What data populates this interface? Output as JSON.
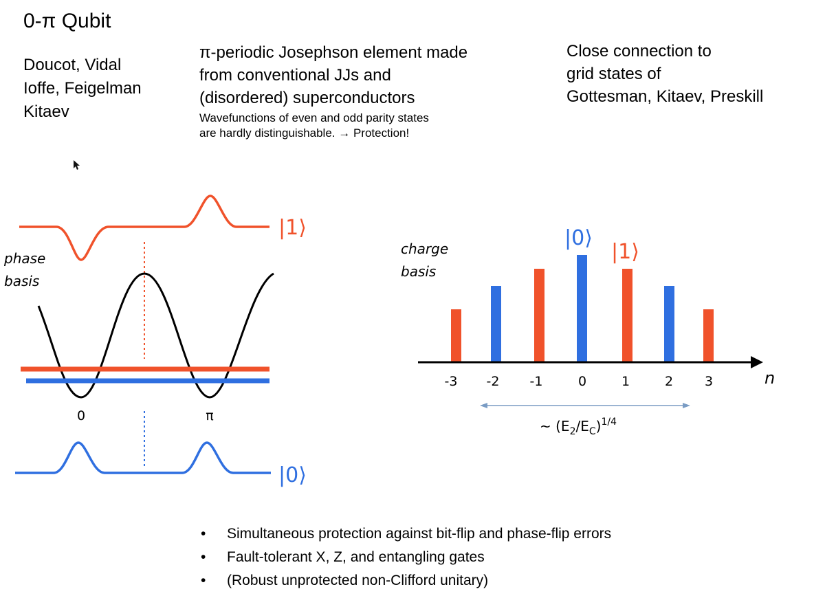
{
  "title": "0-π Qubit",
  "authors": [
    "Doucot, Vidal",
    "Ioffe, Feigelman",
    "Kitaev"
  ],
  "description": {
    "lines": [
      "π-periodic Josephson element made",
      "from conventional JJs and",
      "(disordered) superconductors"
    ],
    "small_lines": [
      "Wavefunctions of even and odd parity states",
      "are hardly distinguishable. → Protection!"
    ]
  },
  "connection": [
    "Close connection to",
    "grid states of",
    "Gottesman, Kitaev, Preskill"
  ],
  "phase_diagram": {
    "label_lines": [
      "phase",
      "basis"
    ],
    "ket_one": "|1⟩",
    "ket_zero": "|0⟩",
    "ticks": [
      "0",
      "π"
    ]
  },
  "charge_diagram": {
    "label_lines": [
      "charge",
      "basis"
    ],
    "ket_zero": "|0⟩",
    "ket_one": "|1⟩",
    "axis_label": "n",
    "ticks": [
      "-3",
      "-2",
      "-1",
      "0",
      "1",
      "2",
      "3"
    ],
    "width_label_prefix": "~ (E",
    "width_sub1": "2",
    "width_mid": "/E",
    "width_sub2": "C",
    "width_suffix": ")",
    "width_sup": "1/4"
  },
  "bullets": [
    "Simultaneous protection against bit-flip and phase-flip errors",
    "Fault-tolerant X, Z, and entangling gates",
    "(Robust unprotected non-Clifford unitary)"
  ],
  "colors": {
    "red": "#f0522b",
    "blue": "#2f6fe0",
    "arrow": "#7a9cc4"
  }
}
